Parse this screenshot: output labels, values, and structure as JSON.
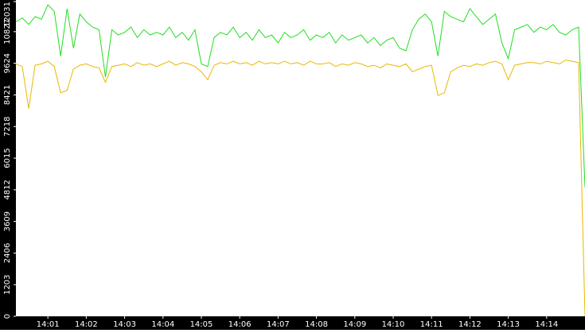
{
  "chart_data": {
    "type": "line",
    "categories": [
      null,
      null,
      null,
      null,
      null,
      "14:01",
      null,
      null,
      null,
      null,
      null,
      "14:02",
      null,
      null,
      null,
      null,
      null,
      "14:03",
      null,
      null,
      null,
      null,
      null,
      "14:04",
      null,
      null,
      null,
      null,
      null,
      "14:05",
      null,
      null,
      null,
      null,
      null,
      "14:06",
      null,
      null,
      null,
      null,
      null,
      "14:07",
      null,
      null,
      null,
      null,
      null,
      "14:08",
      null,
      null,
      null,
      null,
      null,
      "14:09",
      null,
      null,
      null,
      null,
      null,
      "14:10",
      null,
      null,
      null,
      null,
      null,
      "14:11",
      null,
      null,
      null,
      null,
      null,
      "14:12",
      null,
      null,
      null,
      null,
      null,
      "14:13",
      null,
      null,
      null,
      null,
      null,
      "14:14",
      null,
      null,
      null,
      null,
      null,
      null
    ],
    "series": [
      {
        "color": "#22dd22",
        "values": [
          11200,
          11350,
          11100,
          11400,
          11300,
          11850,
          11600,
          9900,
          11700,
          10200,
          11500,
          11200,
          11000,
          10900,
          9100,
          10900,
          10700,
          10800,
          11000,
          10600,
          10900,
          10700,
          10800,
          10700,
          11000,
          10600,
          10800,
          10500,
          10900,
          9600,
          9500,
          10600,
          10800,
          10700,
          11000,
          10600,
          10800,
          10500,
          10900,
          10600,
          10700,
          10400,
          10800,
          10600,
          10700,
          10900,
          10500,
          10700,
          10600,
          10800,
          10400,
          10700,
          10500,
          10600,
          10700,
          10400,
          10600,
          10300,
          10500,
          10600,
          10200,
          10100,
          10900,
          11300,
          11500,
          11200,
          9900,
          11600,
          11400,
          11300,
          11200,
          11700,
          11400,
          11100,
          11300,
          11500,
          10400,
          9800,
          10900,
          11000,
          11100,
          10800,
          11000,
          10900,
          11100,
          10800,
          10700,
          10900,
          11000,
          4900
        ]
      },
      {
        "color": "#e8b800",
        "values": [
          9600,
          9500,
          7900,
          9550,
          9600,
          9700,
          9500,
          8500,
          8600,
          9400,
          9550,
          9600,
          9500,
          9450,
          8900,
          9500,
          9550,
          9600,
          9500,
          9650,
          9550,
          9600,
          9500,
          9600,
          9700,
          9550,
          9650,
          9600,
          9500,
          9300,
          9000,
          9550,
          9650,
          9600,
          9700,
          9600,
          9650,
          9550,
          9700,
          9600,
          9650,
          9600,
          9700,
          9600,
          9650,
          9550,
          9700,
          9600,
          9600,
          9650,
          9500,
          9600,
          9550,
          9650,
          9600,
          9500,
          9550,
          9450,
          9600,
          9550,
          9500,
          9600,
          9300,
          9400,
          9500,
          9550,
          8400,
          8500,
          9300,
          9450,
          9550,
          9500,
          9600,
          9550,
          9650,
          9700,
          9600,
          9000,
          9550,
          9600,
          9650,
          9650,
          9600,
          9700,
          9650,
          9600,
          9750,
          9700,
          9650,
          0
        ]
      }
    ],
    "ylim": [
      0,
      12031
    ],
    "yticks": [
      0,
      1203,
      2406,
      3609,
      4812,
      6015,
      7218,
      8421,
      9624,
      10827,
      12031
    ]
  }
}
